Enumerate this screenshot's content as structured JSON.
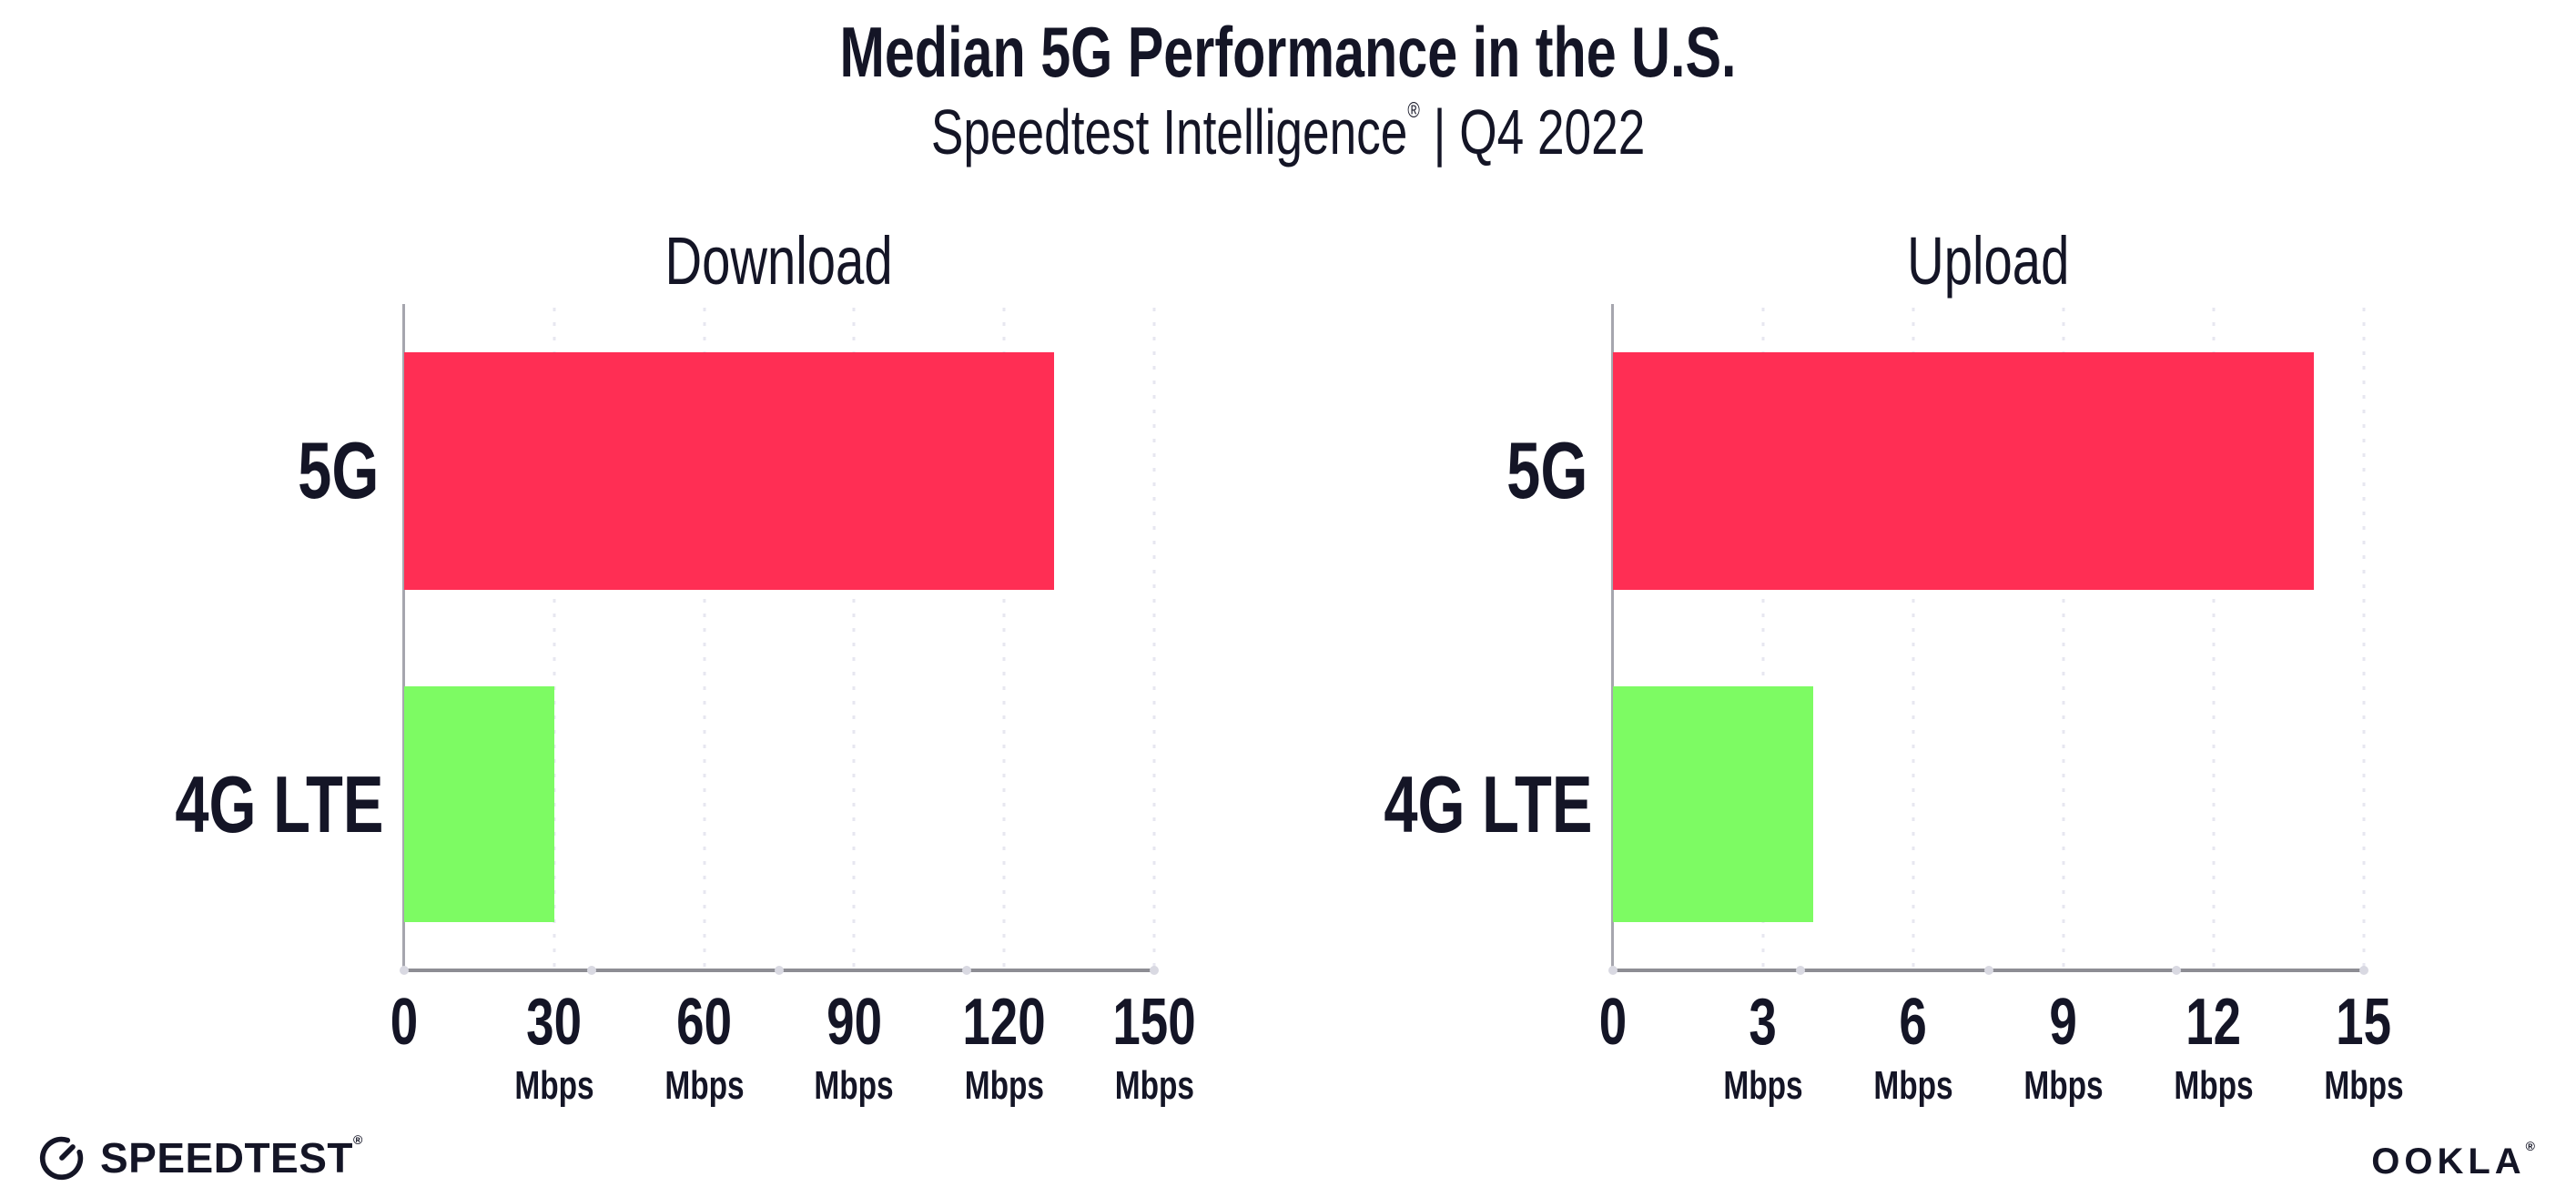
{
  "page": {
    "title": "Median 5G Performance in the U.S.",
    "subtitle_brand": "Speedtest Intelligence",
    "subtitle_reg": "®",
    "subtitle_rest": " | Q4 2022"
  },
  "charts": [
    {
      "title": "Download",
      "max": 150,
      "ticks": [
        {
          "num": "0",
          "unit": ""
        },
        {
          "num": "30",
          "unit": "Mbps"
        },
        {
          "num": "60",
          "unit": "Mbps"
        },
        {
          "num": "90",
          "unit": "Mbps"
        },
        {
          "num": "120",
          "unit": "Mbps"
        },
        {
          "num": "150",
          "unit": "Mbps"
        }
      ],
      "bars": [
        {
          "label": "5G",
          "value": 130,
          "color": "#ff2e54"
        },
        {
          "label": "4G LTE",
          "value": 30,
          "color": "#7dfb63"
        }
      ]
    },
    {
      "title": "Upload",
      "max": 15,
      "ticks": [
        {
          "num": "0",
          "unit": ""
        },
        {
          "num": "3",
          "unit": "Mbps"
        },
        {
          "num": "6",
          "unit": "Mbps"
        },
        {
          "num": "9",
          "unit": "Mbps"
        },
        {
          "num": "12",
          "unit": "Mbps"
        },
        {
          "num": "15",
          "unit": "Mbps"
        }
      ],
      "bars": [
        {
          "label": "5G",
          "value": 14,
          "color": "#ff2e54"
        },
        {
          "label": "4G LTE",
          "value": 4,
          "color": "#7dfb63"
        }
      ]
    }
  ],
  "footer": {
    "speedtest_text": "SPEEDTEST",
    "speedtest_reg": "®",
    "ookla_text": "OOKLA",
    "ookla_reg": "®"
  },
  "colors": {
    "bar_5g": "#ff2e54",
    "bar_4g_lte": "#7dfb63",
    "axis": "#8d8d94",
    "gridline": "#e7e7f0",
    "ink": "#141526"
  },
  "chart_data": {
    "figure_title": "Median 5G Performance in the U.S.",
    "figure_subtitle": "Speedtest Intelligence® | Q4 2022",
    "charts": [
      {
        "type": "bar",
        "orientation": "horizontal",
        "title": "Download",
        "categories": [
          "5G",
          "4G LTE"
        ],
        "values": [
          130,
          30
        ],
        "unit": "Mbps",
        "xlim": [
          0,
          150
        ],
        "xticks": [
          0,
          30,
          60,
          90,
          120,
          150
        ],
        "grid": "dotted-vertical",
        "legend": "none",
        "colors": [
          "#ff2e54",
          "#7dfb63"
        ]
      },
      {
        "type": "bar",
        "orientation": "horizontal",
        "title": "Upload",
        "categories": [
          "5G",
          "4G LTE"
        ],
        "values": [
          14,
          4
        ],
        "unit": "Mbps",
        "xlim": [
          0,
          15
        ],
        "xticks": [
          0,
          3,
          6,
          9,
          12,
          15
        ],
        "grid": "dotted-vertical",
        "legend": "none",
        "colors": [
          "#ff2e54",
          "#7dfb63"
        ]
      }
    ]
  }
}
